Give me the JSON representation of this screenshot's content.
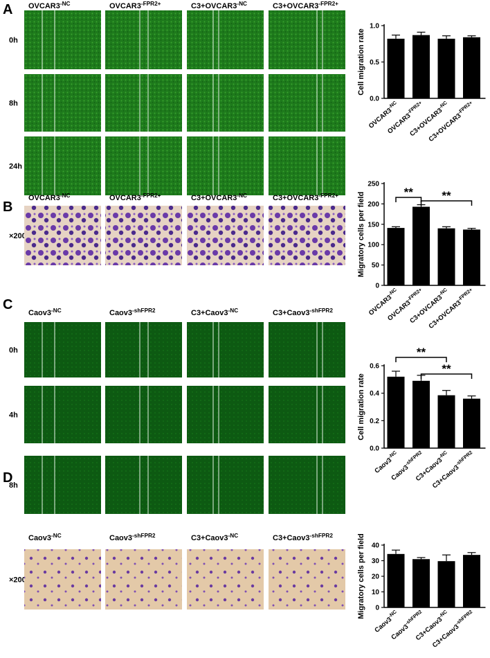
{
  "panels": [
    {
      "letter": "A",
      "columns": [
        "OVCAR3-NC",
        "OVCAR3-FPR2+",
        "C3+OVCAR3-NC",
        "C3+OVCAR3-FPR2+"
      ],
      "rows": [
        "0h",
        "8h",
        "24h"
      ]
    },
    {
      "letter": "B",
      "columns": [
        "OVCAR3-NC",
        "OVCAR3-FPR2+",
        "C3+OVCAR3-NC",
        "C3+OVCAR3-FPR2+"
      ],
      "rows": [
        "×200"
      ]
    },
    {
      "letter": "C",
      "columns": [
        "Caov3-NC",
        "Caov3-shFPR2",
        "C3+Caov3-NC",
        "C3+Caov3-shFPR2"
      ],
      "rows": [
        "0h",
        "4h",
        "8h"
      ]
    },
    {
      "letter": "D",
      "columns": [
        "Caov3-NC",
        "Caov3-shFPR2",
        "C3+Caov3-NC",
        "C3+Caov3-shFPR2"
      ],
      "rows": [
        "×200"
      ]
    }
  ],
  "chart_data": [
    {
      "type": "bar",
      "y_label": "Cell migration rate",
      "categories": [
        "OVCAR3-NC",
        "OVCAR3-FPR2+",
        "C3+OVCAR3-NC",
        "C3+OVCAR3-FPR2+"
      ],
      "values": [
        0.82,
        0.87,
        0.82,
        0.84
      ],
      "errors": [
        0.05,
        0.04,
        0.04,
        0.02
      ],
      "color": "#000000",
      "ylim": [
        0,
        1.0
      ],
      "yticks": [
        {
          "value": 0,
          "label": "0.0"
        },
        0.5,
        {
          "value": 1.0,
          "label": "1.0"
        }
      ]
    },
    {
      "type": "bar",
      "y_label": "Migratory cells per field",
      "categories": [
        "OVCAR3-NC",
        "OVCAR3-FPR2+",
        "C3+OVCAR3-NC",
        "C3+OVCAR3-FPR2+"
      ],
      "values": [
        141,
        193,
        140,
        137
      ],
      "errors": [
        3,
        5,
        4,
        3
      ],
      "color": "#000000",
      "ylim": [
        0,
        250
      ],
      "yticks": [
        0,
        50,
        100,
        150,
        200,
        250
      ],
      "annotations": [
        "**",
        "**"
      ]
    },
    {
      "type": "bar",
      "y_label": "Cell migration rate",
      "categories": [
        "Caov3-NC",
        "Caov3-shFPR2",
        "C3+Caov3-NC",
        "C3+Caov3-shFPR2"
      ],
      "values": [
        0.52,
        0.49,
        0.385,
        0.36
      ],
      "errors": [
        0.04,
        0.04,
        0.035,
        0.02
      ],
      "color": "#000000",
      "ylim": [
        0,
        0.6
      ],
      "yticks": [
        {
          "value": 0,
          "label": "0.0"
        },
        0.2,
        0.4,
        0.6
      ],
      "annotations": [
        "**",
        "**"
      ]
    },
    {
      "type": "bar",
      "y_label": "Migratory cells per field",
      "categories": [
        "Caov3-NC",
        "Caov3-shFPR2",
        "C3+Caov3-NC",
        "C3+Caov3-shFPR2"
      ],
      "values": [
        34.3,
        31,
        29.7,
        33.7
      ],
      "errors": [
        2.5,
        1,
        4,
        1.5
      ],
      "color": "#000000",
      "ylim": [
        0,
        40
      ],
      "yticks": [
        0,
        10,
        20,
        30,
        40
      ]
    }
  ]
}
